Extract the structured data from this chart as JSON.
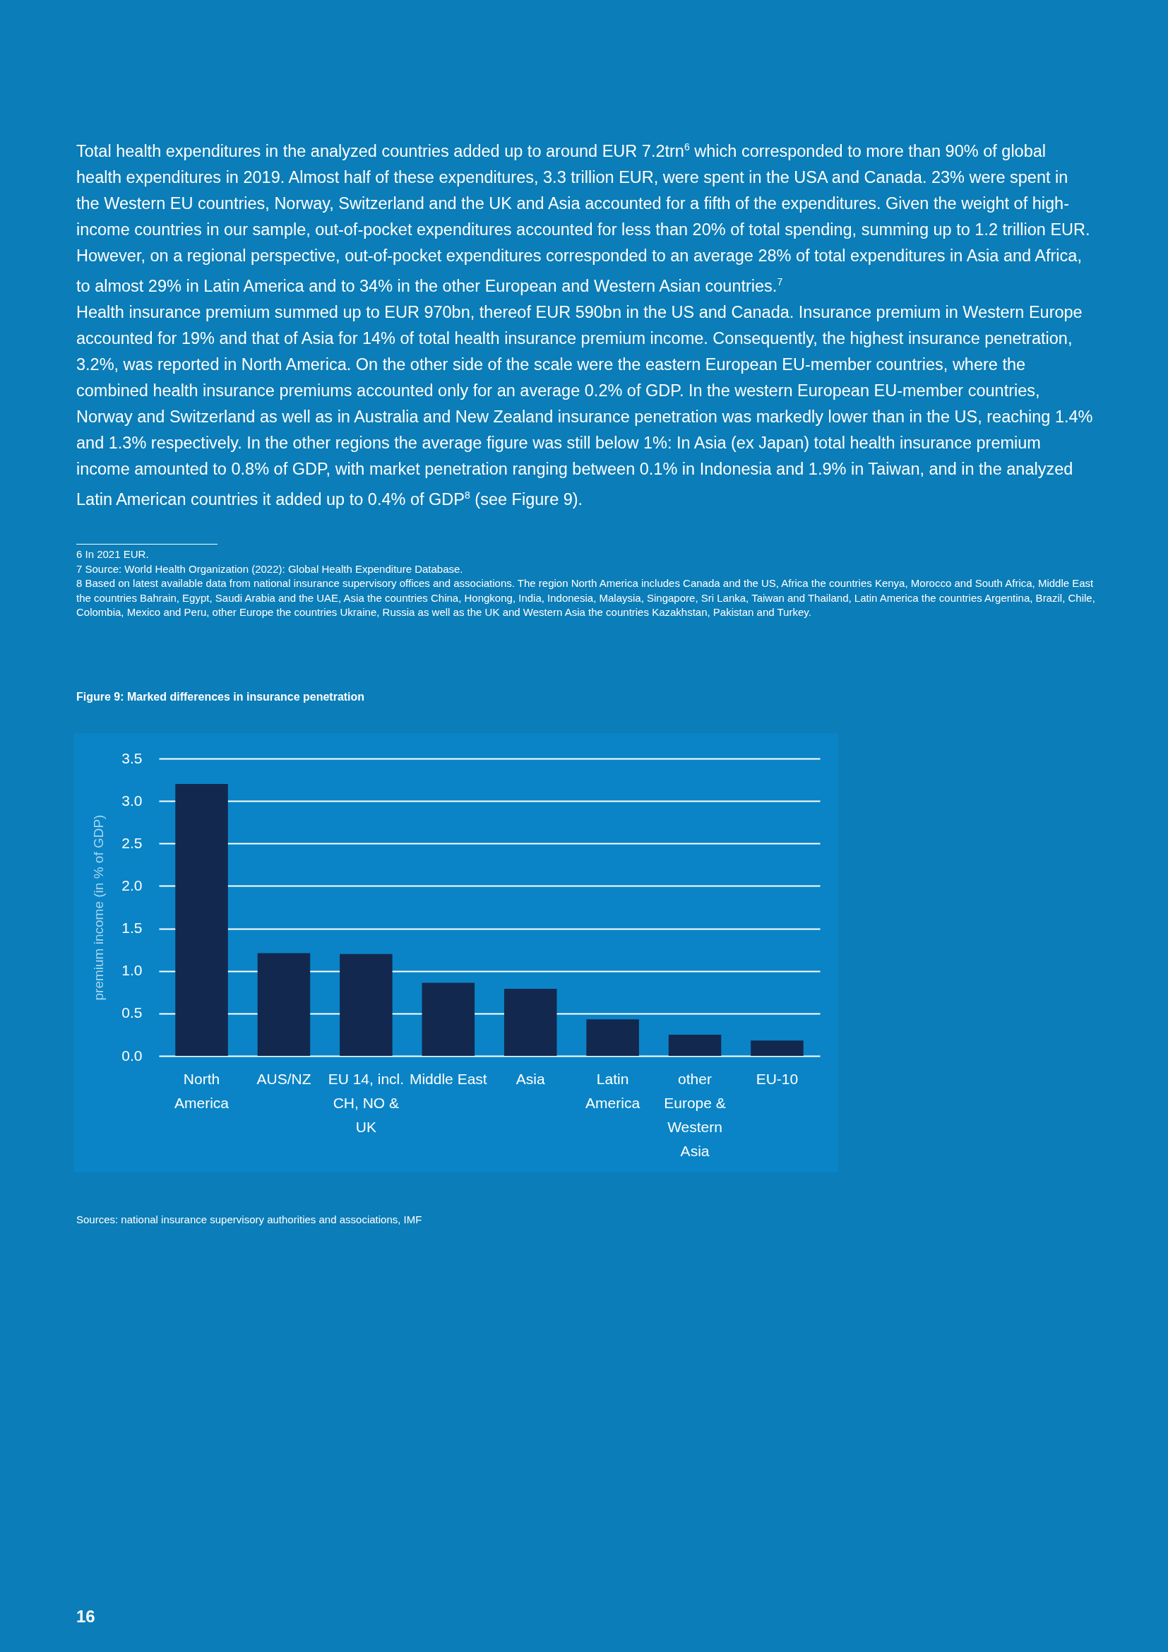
{
  "chart_data": {
    "type": "bar",
    "title": "Figure 9: Marked differences in insurance penetration",
    "ylabel": "premium income (in % of GDP)",
    "categories": [
      "North America",
      "AUS/NZ",
      "EU 14, incl. CH, NO & UK",
      "Middle East",
      "Asia",
      "Latin America",
      "other Europe & Western Asia",
      "EU-10"
    ],
    "values": [
      3.2,
      1.21,
      1.2,
      0.86,
      0.79,
      0.43,
      0.25,
      0.18
    ],
    "color": "#13284f",
    "ylim": [
      0,
      3.5
    ],
    "yticks": [
      {
        "value": 0,
        "label": "0.0"
      },
      0.5,
      {
        "value": 1,
        "label": "1.0"
      },
      1.5,
      {
        "value": 2,
        "label": "2.0"
      },
      2.5,
      {
        "value": 3,
        "label": "3.0"
      },
      3.5
    ],
    "grid": "y",
    "annotations": [
      "Total health expenditures in the analyzed countries added up to around EUR 7.2trn$^{6}$ which corresponded to more than 90% of global health expenditures in 2019. Almost half of these expenditures, 3.3 trillion EUR, were spent in the USA and Canada. 23% were spent in the Western EU countries, Norway, Switzerland and the UK and Asia accounted for a fifth of the expenditures. Given the weight of high-income countries in our sample, out-of-pocket expenditures accounted for less than 20% of total spending, summing up to 1.2 trillion EUR. However, on a regional perspective, out-of-pocket expenditures corresponded to an average 28% of total expenditures in Asia and Africa, to almost 29% in Latin America and to 34% in the other European and Western Asian countries.$^{7}$",
      "Health insurance premium summed up to EUR 970bn, thereof EUR 590bn in the US and Canada. Insurance premium in Western Europe accounted for 19% and that of Asia for 14% of total health insurance premium income. Consequently, the highest insurance penetration, 3.2%, was reported in North America. On the other side of the scale were the eastern European EU-member countries, where the combined health insurance premiums accounted only for an average 0.2% of GDP. In the western European EU-member countries, Norway and Switzerland as well as in Australia and New Zealand insurance penetration was markedly lower than in the US, reaching 1.4% and 1.3% respectively. In the other regions the average figure was still below 1%: In Asia (ex Japan) total health insurance premium income amounted to 0.8% of GDP, with market penetration ranging between 0.1% in Indonesia and 1.9% in Taiwan, and in the analyzed Latin American countries it added up to 0.4% of GDP$^{8}$ (see Figure 9).",
      "6 In 2021 EUR.",
      "7  Source: World Health Organization (2022): Global Health Expenditure Database.",
      "8  Based on latest available data from national insurance supervisory offices and associations. The region North America includes Canada and the US, Africa the countries Kenya, Morocco and South Africa, Middle East the countries Bahrain, Egypt, Saudi Arabia and the UAE, Asia the countries China, Hongkong, India, Indonesia, Malaysia, Singapore, Sri Lanka, Taiwan and Thailand, Latin America the countries Argentina, Brazil, Chile, Colombia, Mexico and Peru, other Europe the countries Ukraine, Russia as well as the UK and Western Asia the countries Kazakhstan, Pakistan and Turkey.",
      "Sources: national insurance supervisory authorities and associations, IMF",
      "16"
    ]
  }
}
